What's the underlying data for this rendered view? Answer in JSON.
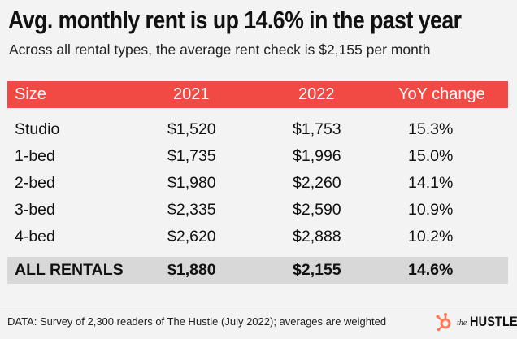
{
  "headline": "Avg. monthly rent is up 14.6% in the past year",
  "subhead": "Across all rental types, the average rent check is $2,155 per month",
  "table": {
    "columns": [
      "Size",
      "2021",
      "2022",
      "YoY change"
    ],
    "rows": [
      {
        "size": "Studio",
        "y2021": "$1,520",
        "y2022": "$1,753",
        "yoy": "15.3%"
      },
      {
        "size": "1-bed",
        "y2021": "$1,735",
        "y2022": "$1,996",
        "yoy": "15.0%"
      },
      {
        "size": "2-bed",
        "y2021": "$1,980",
        "y2022": "$2,260",
        "yoy": "14.1%"
      },
      {
        "size": "3-bed",
        "y2021": "$2,335",
        "y2022": "$2,590",
        "yoy": "10.9%"
      },
      {
        "size": "4-bed",
        "y2021": "$2,620",
        "y2022": "$2,888",
        "yoy": "10.2%"
      }
    ],
    "total": {
      "size": "ALL RENTALS",
      "y2021": "$1,880",
      "y2022": "$2,155",
      "yoy": "14.6%"
    }
  },
  "footer": "DATA: Survey of 2,300 readers of The Hustle (July 2022); averages are weighted",
  "logo": {
    "prefix": "the",
    "brand": "HUSTLE",
    "icon": "hubspot-sprocket-icon"
  },
  "colors": {
    "header_bg": "#f14a44",
    "total_bg": "#d8d8d8",
    "background": "#f3f3f3",
    "logo_orange": "#ff7a59"
  }
}
